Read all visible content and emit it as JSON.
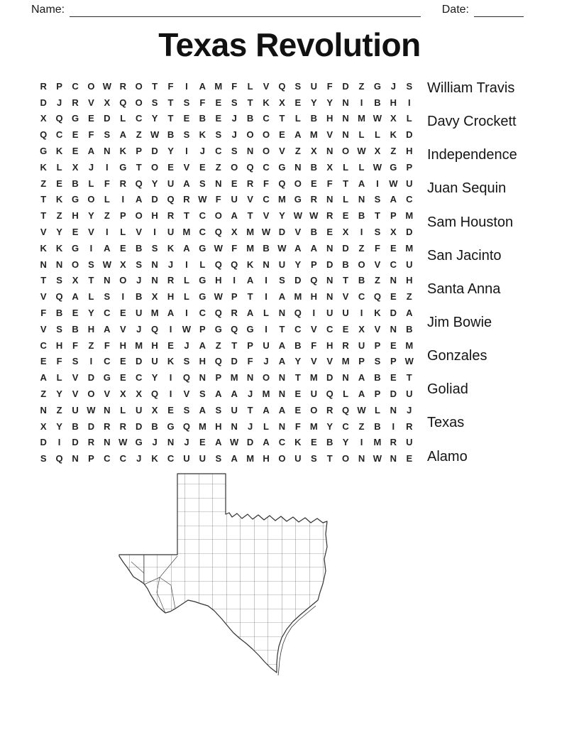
{
  "page": {
    "name_label": "Name:",
    "date_label": "Date:",
    "title": "Texas Revolution"
  },
  "grid": {
    "rows": [
      "RPCOWROTFIAMFLVQSUFDZGJS",
      "DJRVXQOSTSFESTKXEYYNIBHI",
      "XQGEDLCYTEBEJBCTLBHNMWXL",
      "QCEFSAZWBSKSJOOEAMVNLLKD",
      "GKEANKPDYIJCSNOVZXNOWXZH",
      "KLXJIGTOEVEZOQCGNBXLLWGP",
      "ZEBLFRQYUASNERFQOEFTAIWU",
      "TKGOLIADQRWFUVCMGRNLNSAC",
      "TZHYZPOHRTCOATVYWWREBTPM",
      "VYEVILVIUMCQXMWDVBEXISXD",
      "KKGIAEBSKAGWFMBWAANDZFEM",
      "NNOSWXSNJILQQKNUYPDBOVCU",
      "TSXTNOJNRLGHIAISDQNTBZNH",
      "VQALSIBXHLGWPTIAMHNVCQEZ",
      "FBEYCEUMAICQRALNQIUUIKDA",
      "VSBHAVJQIWPGQGITCVCEXVNB",
      "CHFZFHMHEJAZTPUABFHRUPEM",
      "EFSICEDUKSHQDFJAYVVMPSPW",
      "ALVDGECYIQNPMNONTMDNABET",
      "ZYVOVXXQIVSAAJMNEUQLAPDU",
      "NZUWNLUXESASUTAAEORQWLNJ",
      "XYBDRRDBGQMHNJLNFMYCZBIR",
      "DIDRNWGJNJEAWDACKEBYIMRU",
      "SQNPCCJKCUUSAMHOUSTONWNE"
    ]
  },
  "word_list": [
    "William Travis",
    "Davy Crockett",
    "Independence",
    "Juan Sequin",
    "Sam Houston",
    "San Jacinto",
    "Santa Anna",
    "Jim Bowie",
    "Gonzales",
    "Goliad",
    "Texas",
    "Alamo"
  ],
  "map": {
    "name": "texas-county-outline-map"
  },
  "colors": {
    "ink": "#1a1a1a",
    "grid_letter": "#222222",
    "map_line": "#3a3a3a",
    "blank_line": "#2a2a2a"
  }
}
